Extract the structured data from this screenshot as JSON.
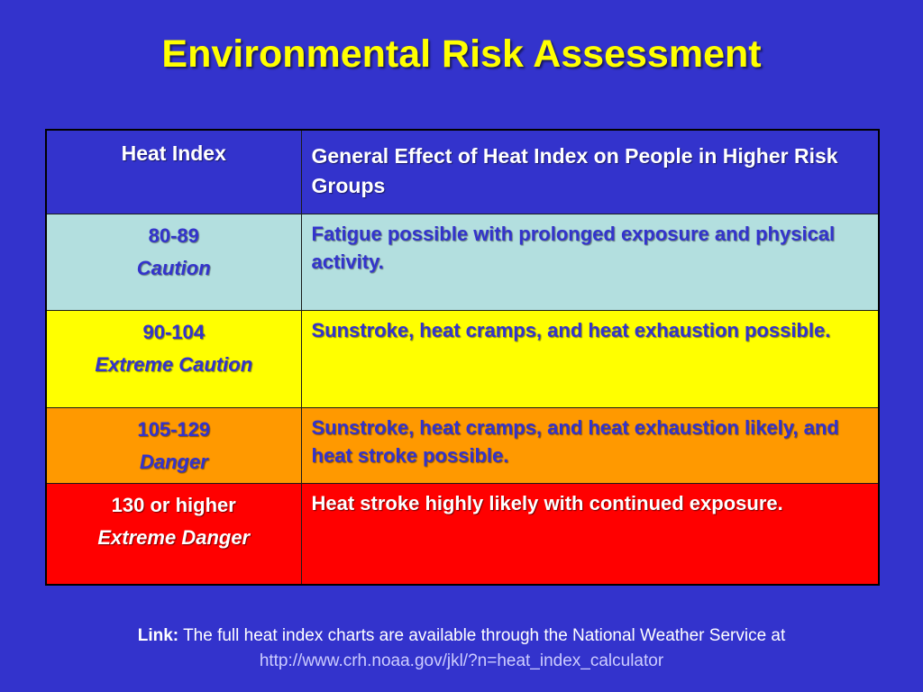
{
  "title": "Environmental Risk Assessment",
  "table": {
    "headers": {
      "heat_index": "Heat Index",
      "effect": "General Effect of Heat Index on People in Higher Risk Groups"
    },
    "rows": [
      {
        "range": "80-89",
        "level": "Caution",
        "effect": "Fatigue possible with prolonged exposure and physical activity.",
        "color": "#b3dfdf"
      },
      {
        "range": "90-104",
        "level": "Extreme Caution",
        "effect": "Sunstroke, heat cramps, and heat exhaustion possible.",
        "color": "#ffff00"
      },
      {
        "range": "105-129",
        "level": "Danger",
        "effect": "Sunstroke, heat cramps, and heat exhaustion likely, and heat stroke possible.",
        "color": "#ff9900"
      },
      {
        "range": "130 or higher",
        "level": "Extreme Danger",
        "effect": "Heat stroke highly likely with continued exposure.",
        "color": "#ff0000"
      }
    ]
  },
  "footer": {
    "label": "Link:",
    "text": "The full heat index charts are available through the National Weather Service at",
    "url": "http://www.crh.noaa.gov/jkl/?n=heat_index_calculator"
  },
  "colors": {
    "background": "#3333cc",
    "title": "#ffff00"
  }
}
